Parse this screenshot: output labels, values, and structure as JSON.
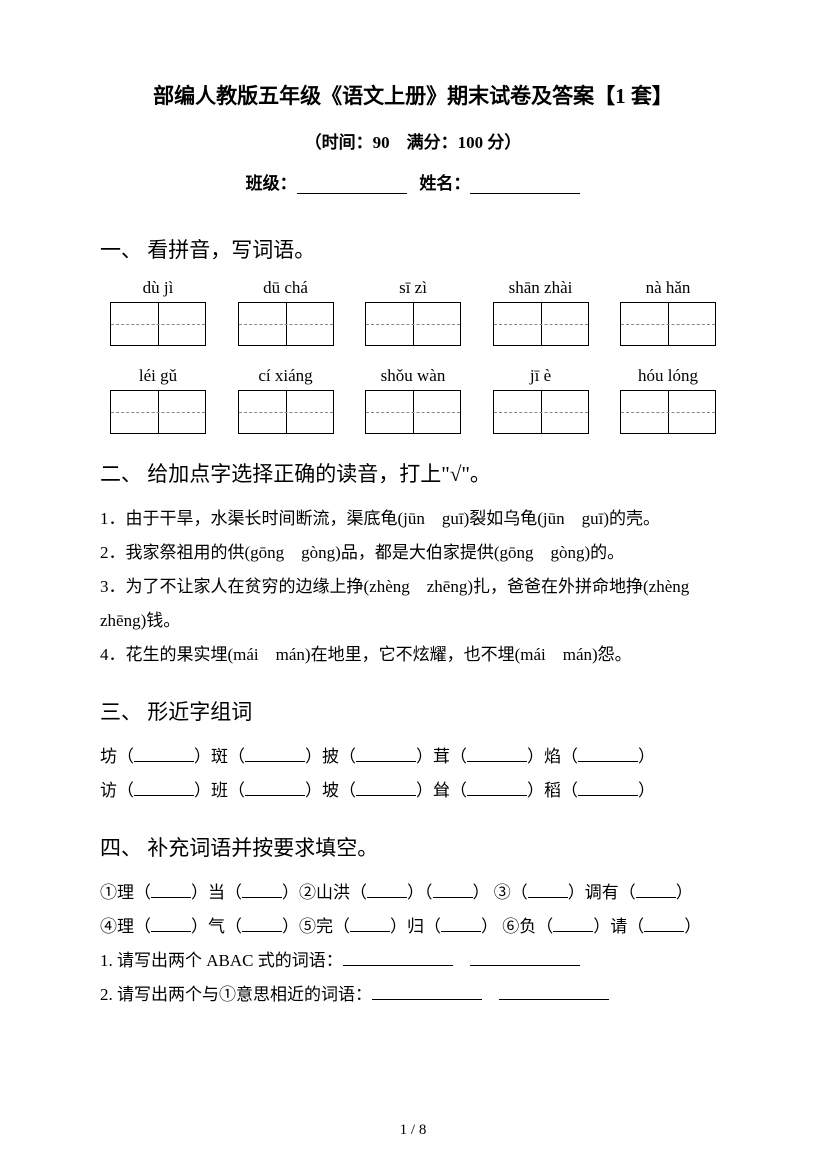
{
  "header": {
    "title": "部编人教版五年级《语文上册》期末试卷及答案【1 套】",
    "subtitle": "（时间：90　满分：100 分）",
    "class_label": "班级：",
    "name_label": "姓名："
  },
  "section1": {
    "heading": "一、 看拼音，写词语。",
    "row1": [
      "dù jì",
      "dū chá",
      "sī zì",
      "shān zhài",
      "nà hǎn"
    ],
    "row2": [
      "léi gǔ",
      "cí xiáng",
      "shǒu wàn",
      "jī è",
      "hóu lóng"
    ]
  },
  "section2": {
    "heading": "二、 给加点字选择正确的读音，打上\"√\"。",
    "items": [
      "1．由于干旱，水渠长时间断流，渠底龟(jūn　guī)裂如乌龟(jūn　guī)的壳。",
      "2．我家祭祖用的供(gōng　gòng)品，都是大伯家提供(gōng　gòng)的。",
      "3．为了不让家人在贫穷的边缘上挣(zhèng　zhēng)扎，爸爸在外拼命地挣(zhèng zhēng)钱。",
      "4．花生的果实埋(mái　mán)在地里，它不炫耀，也不埋(mái　mán)怨。"
    ]
  },
  "section3": {
    "heading": "三、 形近字组词",
    "row1_chars": [
      "坊",
      "斑",
      "披",
      "茸",
      "焰"
    ],
    "row2_chars": [
      "访",
      "班",
      "坡",
      "耸",
      "稻"
    ]
  },
  "section4": {
    "heading": "四、 补充词语并按要求填空。",
    "line1_parts": [
      "①理（",
      "）当（",
      "）②山洪（",
      "）（",
      "） ③（",
      "）调有（",
      "）"
    ],
    "line2_parts": [
      "④理（",
      "）气（",
      "）⑤完（",
      "）归（",
      "） ⑥负（",
      "）请（",
      "）"
    ],
    "q1": "1. 请写出两个 ABAC 式的词语：",
    "q2": "2. 请写出两个与①意思相近的词语："
  },
  "footer": {
    "page": "1 / 8"
  }
}
